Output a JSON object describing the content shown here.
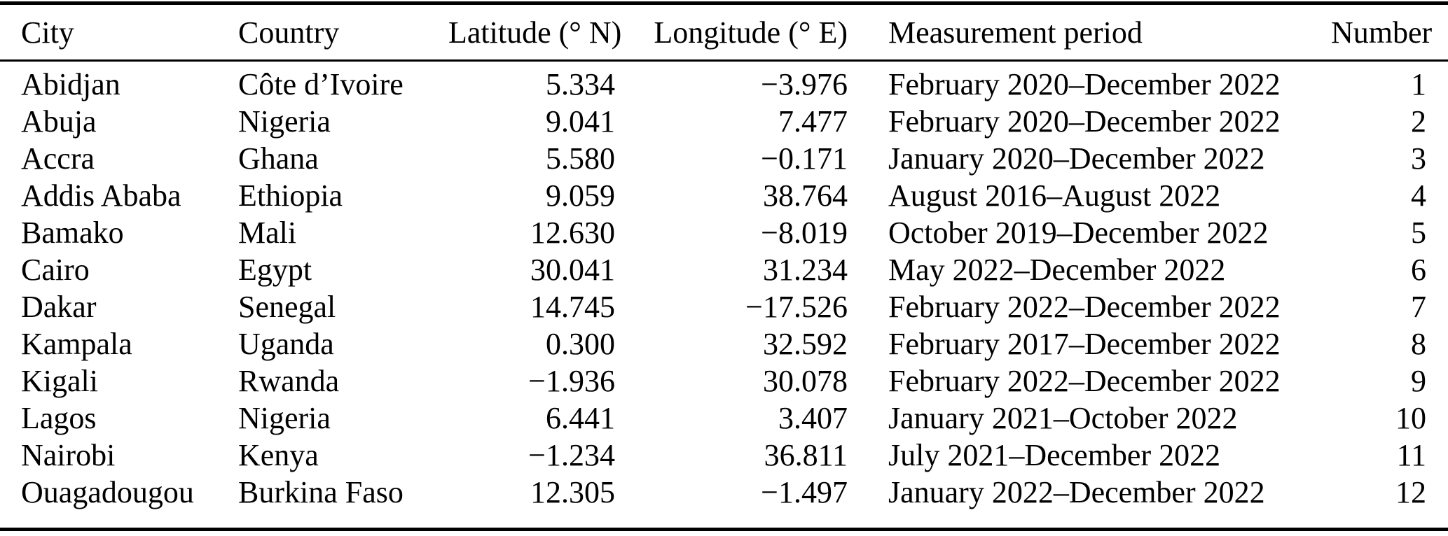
{
  "colors": {
    "background": "#ffffff",
    "text": "#000000",
    "rule": "#000000"
  },
  "table": {
    "columns": [
      {
        "label": "City",
        "align": "left"
      },
      {
        "label": "Country",
        "align": "left"
      },
      {
        "label": "Latitude (° N)",
        "align": "right"
      },
      {
        "label": "Longitude (° E)",
        "align": "right"
      },
      {
        "label": "Measurement period",
        "align": "left"
      },
      {
        "label": "Number",
        "align": "right"
      }
    ],
    "rows": [
      [
        "Abidjan",
        "Côte d’Ivoire",
        "5.334",
        "−3.976",
        "February 2020–December 2022",
        "1"
      ],
      [
        "Abuja",
        "Nigeria",
        "9.041",
        "7.477",
        "February 2020–December 2022",
        "2"
      ],
      [
        "Accra",
        "Ghana",
        "5.580",
        "−0.171",
        "January 2020–December 2022",
        "3"
      ],
      [
        "Addis Ababa",
        "Ethiopia",
        "9.059",
        "38.764",
        "August 2016–August 2022",
        "4"
      ],
      [
        "Bamako",
        "Mali",
        "12.630",
        "−8.019",
        "October 2019–December 2022",
        "5"
      ],
      [
        "Cairo",
        "Egypt",
        "30.041",
        "31.234",
        "May 2022–December 2022",
        "6"
      ],
      [
        "Dakar",
        "Senegal",
        "14.745",
        "−17.526",
        "February 2022–December 2022",
        "7"
      ],
      [
        "Kampala",
        "Uganda",
        "0.300",
        "32.592",
        "February 2017–December 2022",
        "8"
      ],
      [
        "Kigali",
        "Rwanda",
        "−1.936",
        "30.078",
        "February 2022–December 2022",
        "9"
      ],
      [
        "Lagos",
        "Nigeria",
        "6.441",
        "3.407",
        "January 2021–October 2022",
        "10"
      ],
      [
        "Nairobi",
        "Kenya",
        "−1.234",
        "36.811",
        "July 2021–December 2022",
        "11"
      ],
      [
        "Ouagadougou",
        "Burkina Faso",
        "12.305",
        "−1.497",
        "January 2022–December 2022",
        "12"
      ]
    ],
    "column_keys": [
      "city",
      "country",
      "latitude",
      "longitude",
      "period",
      "number"
    ]
  }
}
